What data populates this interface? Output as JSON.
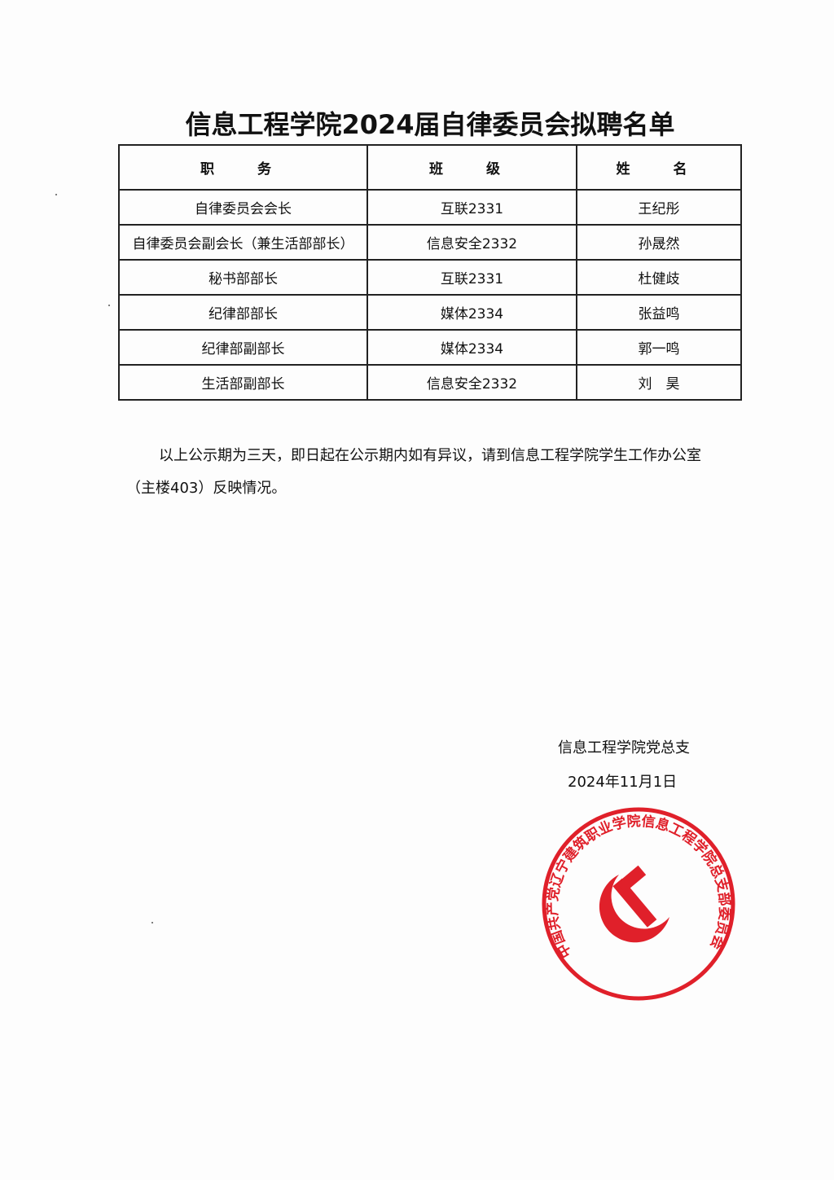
{
  "title": "信息工程学院2024届自律委员会拟聘名单",
  "table": {
    "headers": [
      "职　务",
      "班　级",
      "姓　名"
    ],
    "rows": [
      [
        "自律委员会会长",
        "互联2331",
        "王纪彤"
      ],
      [
        "自律委员会副会长（兼生活部部长）",
        "信息安全2332",
        "孙晟然"
      ],
      [
        "秘书部部长",
        "互联2331",
        "杜健歧"
      ],
      [
        "纪律部部长",
        "媒体2334",
        "张益鸣"
      ],
      [
        "纪律部副部长",
        "媒体2334",
        "郭一鸣"
      ],
      [
        "生活部副部长",
        "信息安全2332",
        "刘　昊"
      ]
    ]
  },
  "notice": "以上公示期为三天，即日起在公示期内如有异议，请到信息工程学院学生工作办公室（主楼403）反映情况。",
  "signature": "信息工程学院党总支",
  "date": "2024年11月1日",
  "stamp": {
    "text": "中国共产党辽宁建筑职业学院信息工程学院总支部委员会",
    "color": "#e0202a",
    "icon": "hammer-sickle-icon"
  }
}
